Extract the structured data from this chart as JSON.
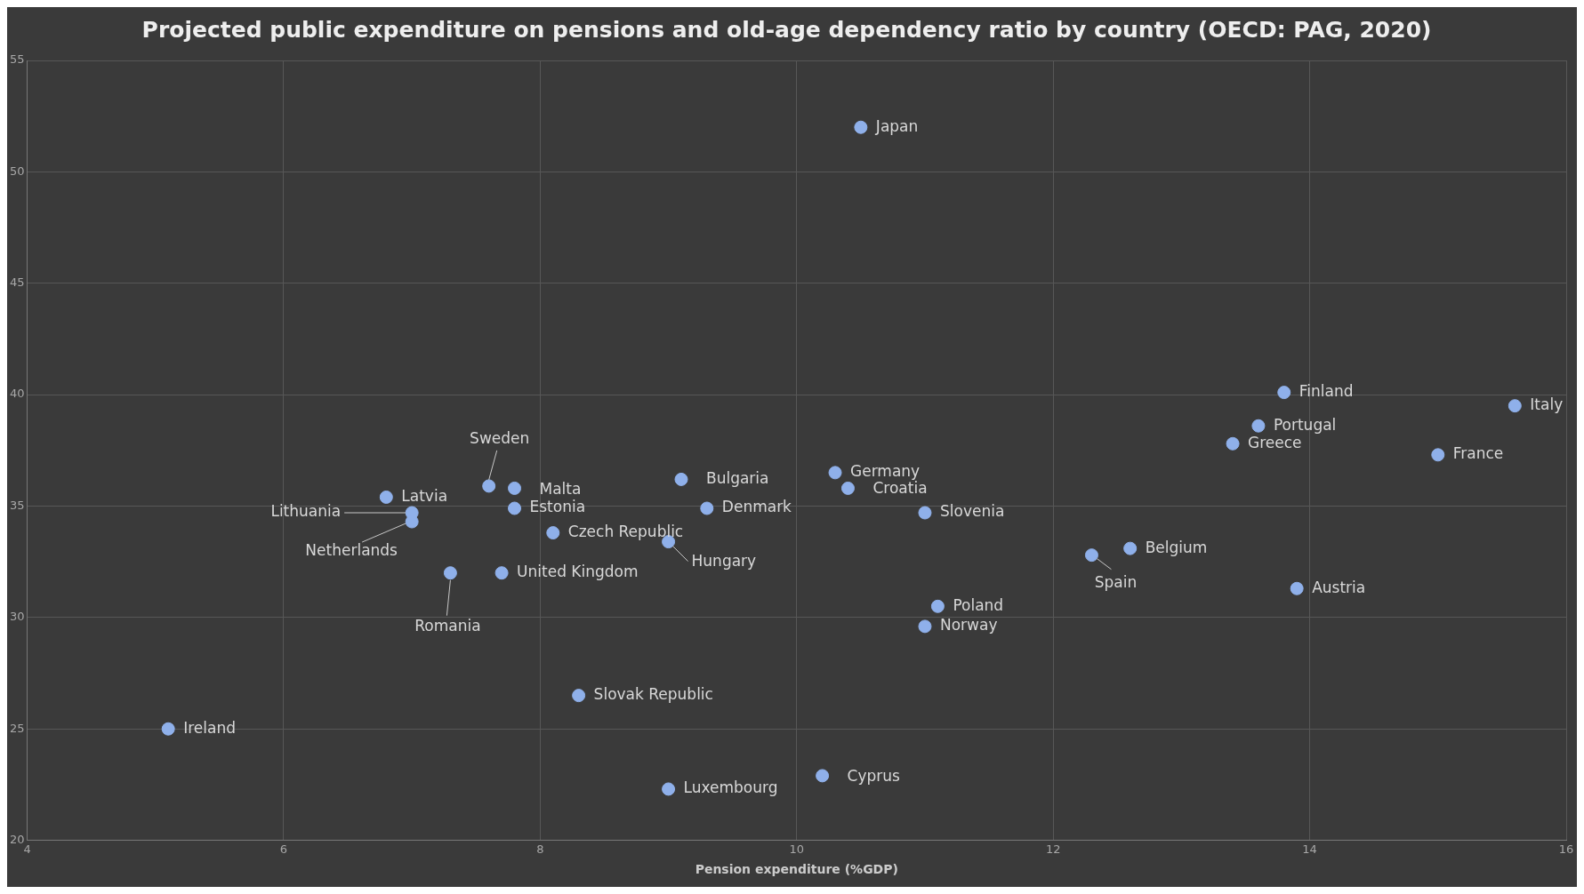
{
  "chart_data": {
    "type": "scatter",
    "title": "Projected public expenditure on pensions and old-age dependency ratio by country (OECD: PAG, 2020)",
    "xlabel": "Pension expenditure (%GDP)",
    "xlim": [
      4,
      16
    ],
    "xticks": [
      4,
      6,
      8,
      10,
      12,
      14,
      16
    ],
    "ylim": [
      20,
      55
    ],
    "yticks": [
      20,
      25,
      30,
      35,
      40,
      45,
      50,
      55
    ],
    "grid": true,
    "legend": false,
    "marker": "circle",
    "series": [
      {
        "color": "#8fb0ea",
        "x": [
          10.5,
          13.8,
          15.6,
          13.6,
          13.4,
          15.0,
          10.3,
          10.4,
          9.1,
          7.6,
          7.8,
          6.8,
          7.0,
          7.0,
          7.8,
          9.3,
          11.0,
          8.1,
          9.0,
          12.6,
          12.3,
          7.3,
          7.7,
          13.9,
          11.1,
          11.0,
          8.3,
          5.1,
          10.2,
          9.0
        ],
        "values": [
          52.0,
          40.1,
          39.5,
          38.6,
          37.8,
          37.3,
          36.5,
          35.8,
          36.2,
          35.9,
          35.8,
          35.4,
          34.7,
          34.3,
          34.9,
          34.9,
          34.7,
          33.8,
          33.4,
          33.1,
          32.8,
          32.0,
          32.0,
          31.3,
          30.5,
          29.6,
          26.5,
          25.0,
          22.9,
          22.3
        ]
      }
    ],
    "annotations": [
      {
        "text": "Japan",
        "x": 10.5,
        "y": 52.0
      },
      {
        "text": "Finland",
        "x": 13.8,
        "y": 40.1
      },
      {
        "text": "Italy",
        "x": 15.6,
        "y": 39.5
      },
      {
        "text": "Portugal",
        "x": 13.6,
        "y": 38.6
      },
      {
        "text": "Greece",
        "x": 13.4,
        "y": 37.8
      },
      {
        "text": "France",
        "x": 15.0,
        "y": 37.3
      },
      {
        "text": "Germany",
        "x": 10.3,
        "y": 36.5
      },
      {
        "text": "Croatia",
        "x": 10.4,
        "y": 35.8
      },
      {
        "text": "Bulgaria",
        "x": 9.1,
        "y": 36.2
      },
      {
        "text": "Sweden",
        "x": 7.6,
        "y": 35.9
      },
      {
        "text": "Malta",
        "x": 7.8,
        "y": 35.8
      },
      {
        "text": "Latvia",
        "x": 6.8,
        "y": 35.4
      },
      {
        "text": "Lithuania",
        "x": 7.0,
        "y": 34.7
      },
      {
        "text": "Netherlands",
        "x": 7.0,
        "y": 34.3
      },
      {
        "text": "Estonia",
        "x": 7.8,
        "y": 34.9
      },
      {
        "text": "Denmark",
        "x": 9.3,
        "y": 34.9
      },
      {
        "text": "Slovenia",
        "x": 11.0,
        "y": 34.7
      },
      {
        "text": "Czech Republic",
        "x": 8.1,
        "y": 33.8
      },
      {
        "text": "Hungary",
        "x": 9.0,
        "y": 33.4
      },
      {
        "text": "Belgium",
        "x": 12.6,
        "y": 33.1
      },
      {
        "text": "Spain",
        "x": 12.3,
        "y": 32.8
      },
      {
        "text": "Romania",
        "x": 7.3,
        "y": 32.0
      },
      {
        "text": "United Kingdom",
        "x": 7.7,
        "y": 32.0
      },
      {
        "text": "Austria",
        "x": 13.9,
        "y": 31.3
      },
      {
        "text": "Poland",
        "x": 11.1,
        "y": 30.5
      },
      {
        "text": "Norway",
        "x": 11.0,
        "y": 29.6
      },
      {
        "text": "Slovak Republic",
        "x": 8.3,
        "y": 26.5
      },
      {
        "text": "Ireland",
        "x": 5.1,
        "y": 25.0
      },
      {
        "text": "Cyprus",
        "x": 10.2,
        "y": 22.9
      },
      {
        "text": "Luxembourg",
        "x": 9.0,
        "y": 22.3
      }
    ]
  }
}
